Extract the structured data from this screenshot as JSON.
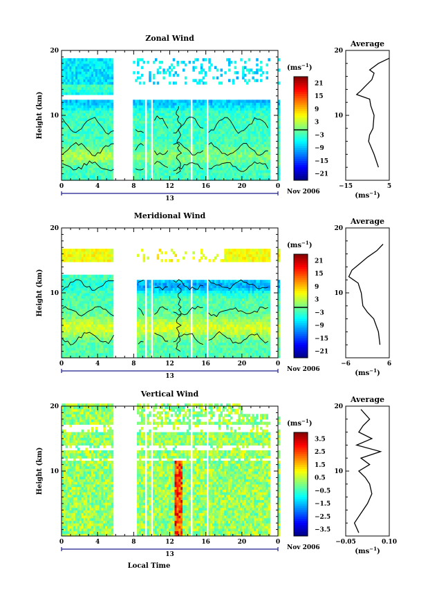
{
  "chart_data": [
    {
      "type": "heatmap",
      "title": "Zonal Wind",
      "ylabel": "Height (km)",
      "ylim": [
        0,
        20
      ],
      "xlim": [
        0,
        24
      ],
      "x_ticks": [
        "0",
        "4",
        "8",
        "12",
        "16",
        "20",
        "0"
      ],
      "y_ticks": [
        "10",
        "20"
      ],
      "date_label": "13",
      "date_suffix": "Nov 2006",
      "colorbar": {
        "unit_label": "(ms",
        "unit_exp": "−1",
        "ticks": [
          "21",
          "15",
          "9",
          "3",
          "−3",
          "−9",
          "−15",
          "−21"
        ],
        "range": [
          -24,
          24
        ]
      },
      "data_gaps": [
        [
          5.8,
          7.9
        ],
        [
          9.3,
          9.5
        ],
        [
          9.9,
          10.1
        ],
        [
          12.0,
          12.2
        ],
        [
          14.3,
          14.5
        ],
        [
          16.0,
          16.2
        ],
        [
          23.2,
          24
        ]
      ],
      "average_profile": {
        "title": "Average",
        "xlabel": "(ms",
        "xlabel_exp": "−1",
        "x_ticks": [
          "−15",
          "5"
        ],
        "xlim": [
          -15,
          5
        ],
        "y_ticks": [
          "10",
          "20"
        ],
        "height_km": [
          2,
          4,
          6,
          7,
          8,
          10,
          11.5,
          12.5,
          13.2,
          13.8,
          14.5,
          15.5,
          16.5,
          17,
          18,
          18.8
        ],
        "value_ms": [
          0,
          -2,
          -4.5,
          -4,
          -2.5,
          -2,
          -3.5,
          -4,
          -10,
          -8,
          -6,
          -3,
          -2,
          -4,
          0,
          5
        ]
      }
    },
    {
      "type": "heatmap",
      "title": "Meridional Wind",
      "ylabel": "Height (km)",
      "ylim": [
        0,
        20
      ],
      "xlim": [
        0,
        24
      ],
      "x_ticks": [
        "0",
        "4",
        "8",
        "12",
        "16",
        "20",
        "0"
      ],
      "y_ticks": [
        "10",
        "20"
      ],
      "date_label": "13",
      "date_suffix": "Nov 2006",
      "colorbar": {
        "unit_label": "(ms",
        "unit_exp": "−1",
        "ticks": [
          "21",
          "15",
          "9",
          "3",
          "−3",
          "−9",
          "−15",
          "−21"
        ],
        "range": [
          -24,
          24
        ]
      },
      "data_gaps": [
        [
          5.8,
          8.4
        ],
        [
          9.3,
          9.5
        ],
        [
          9.9,
          10.1
        ],
        [
          12.0,
          12.2
        ],
        [
          14.3,
          14.5
        ],
        [
          16.0,
          16.2
        ],
        [
          23.2,
          24
        ]
      ],
      "average_profile": {
        "title": "Average",
        "xlabel": "(ms",
        "xlabel_exp": "−1",
        "x_ticks": [
          "−6",
          "6"
        ],
        "xlim": [
          -8,
          6
        ],
        "y_ticks": [
          "10",
          "20"
        ],
        "height_km": [
          2,
          4,
          6,
          7,
          8,
          10,
          11.5,
          12.5,
          13.5,
          14.5,
          15.5,
          16.5,
          17.5
        ],
        "value_ms": [
          3,
          2.5,
          1,
          -1,
          -2.5,
          -3,
          -4,
          -7,
          -6,
          -3.5,
          -1,
          2,
          4
        ]
      }
    },
    {
      "type": "heatmap",
      "title": "Vertical Wind",
      "ylabel": "Height (km)",
      "xlabel": "Local Time",
      "ylim": [
        0,
        20
      ],
      "xlim": [
        0,
        24
      ],
      "x_ticks": [
        "0",
        "4",
        "8",
        "12",
        "16",
        "20",
        "0"
      ],
      "y_ticks": [
        "10",
        "20"
      ],
      "date_label": "13",
      "date_suffix": "Nov 2006",
      "colorbar": {
        "unit_label": "(ms",
        "unit_exp": "−1",
        "ticks": [
          "3.5",
          "2.5",
          "1.5",
          "0.5",
          "−0.5",
          "−1.5",
          "−2.5",
          "−3.5"
        ],
        "range": [
          -4,
          4
        ]
      },
      "data_gaps": [
        [
          5.8,
          8.4
        ],
        [
          9.3,
          9.5
        ],
        [
          9.9,
          10.1
        ],
        [
          12.0,
          12.2
        ],
        [
          14.3,
          14.5
        ],
        [
          16.0,
          16.2
        ],
        [
          23.2,
          24
        ]
      ],
      "average_profile": {
        "title": "Average",
        "xlabel": "(ms",
        "xlabel_exp": "−1",
        "x_ticks": [
          "−0.05",
          "0.10"
        ],
        "xlim": [
          -0.08,
          0.12
        ],
        "y_ticks": [
          "10",
          "20"
        ],
        "height_km": [
          0.5,
          2,
          3.5,
          5,
          6.5,
          8,
          9,
          10,
          11,
          12,
          13,
          14,
          15,
          16,
          17,
          18,
          19.5
        ],
        "value_ms": [
          -0.02,
          -0.04,
          -0.01,
          0.02,
          0.04,
          0.03,
          0.01,
          -0.02,
          0.03,
          -0.01,
          0.08,
          -0.03,
          0.04,
          -0.02,
          0.0,
          0.03,
          -0.01
        ]
      }
    }
  ]
}
